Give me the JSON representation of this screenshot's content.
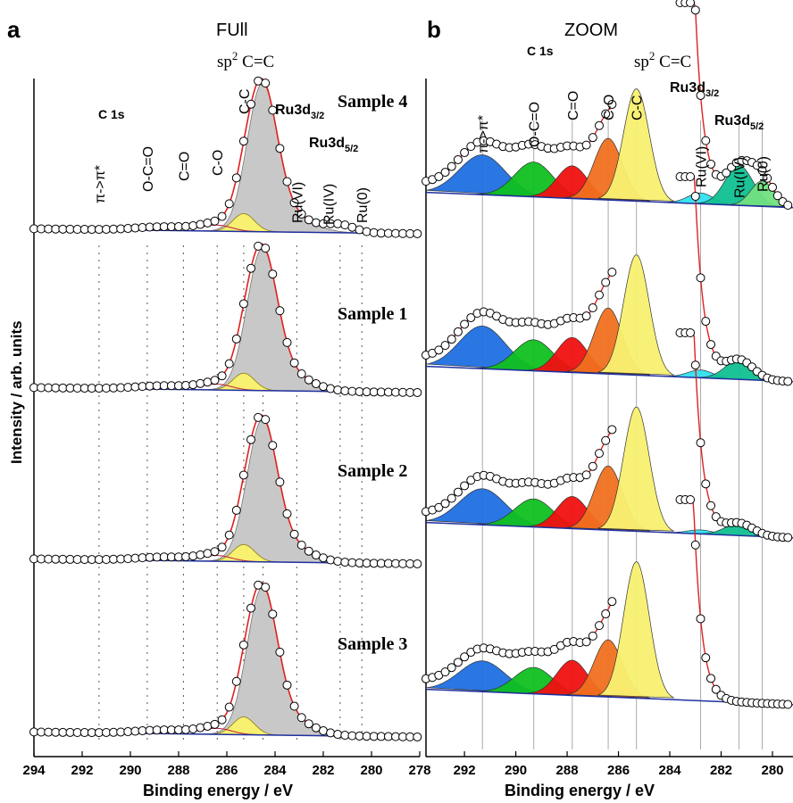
{
  "panels": {
    "a": {
      "letter": "a",
      "title": "FUll"
    },
    "b": {
      "letter": "b",
      "title": "ZOOM"
    }
  },
  "axes": {
    "ylabel": "Intensity / arb. units",
    "xlabel": "Binding energy / eV"
  },
  "annotations": {
    "c1s": "C 1s",
    "sp2": "sp",
    "sp2_sup": "2",
    "sp2_rest": " C=C",
    "pi": "π->π*",
    "ococ": "O-C=O",
    "co_double": "C=O",
    "co_single": "C-O",
    "cc": "C-C",
    "ru_vi": "Ru(VI)",
    "ru_iv": "Ru(IV)",
    "ru_0": "Ru(0)",
    "ru32_main": "Ru3d",
    "ru32_sub": "3/2",
    "ru52_main": "Ru3d",
    "ru52_sub": "5/2"
  },
  "samples": [
    "Sample 4",
    "Sample 1",
    "Sample 2",
    "Sample 3"
  ],
  "colors": {
    "pi": "#1f6fe0",
    "ococ": "#10c020",
    "co_double": "#f01010",
    "co_single": "#f07020",
    "cc": "#f8f070",
    "ru_main": "#c8c8c8",
    "ru_vi": "#30e0f0",
    "ru_iv": "#10c090",
    "ru_0": "#70e080",
    "envelope": "#e02020",
    "baseline": "#2030a0"
  },
  "chart_data": [
    {
      "type": "line",
      "panel": "a",
      "title": "FUll",
      "xlabel": "Binding energy / eV",
      "ylabel": "Intensity / arb. units",
      "x_ticks": [
        294,
        292,
        290,
        288,
        286,
        284,
        282,
        280,
        278
      ],
      "xlim": [
        294,
        278
      ],
      "x_reversed": true,
      "reference_lines_eV": [
        291.3,
        289.3,
        287.8,
        286.4,
        285.3,
        284.5,
        283.1,
        281.3,
        280.4
      ],
      "series": [
        {
          "name": "Sample 4",
          "peak_eV": 284.6,
          "peak_height": 1.0,
          "components": [
            "C 1s",
            "Ru3d3/2",
            "Ru3d5/2"
          ]
        },
        {
          "name": "Sample 1",
          "peak_eV": 284.6,
          "peak_height": 1.0,
          "components": [
            "C 1s",
            "Ru3d3/2",
            "Ru3d5/2"
          ]
        },
        {
          "name": "Sample 2",
          "peak_eV": 284.6,
          "peak_height": 1.0,
          "components": [
            "C 1s",
            "Ru3d3/2",
            "Ru3d5/2"
          ]
        },
        {
          "name": "Sample 3",
          "peak_eV": 284.6,
          "peak_height": 1.0,
          "components": [
            "C 1s",
            "Ru3d3/2",
            "Ru3d5/2"
          ]
        }
      ]
    },
    {
      "type": "line",
      "panel": "b",
      "title": "ZOOM",
      "xlabel": "Binding energy / eV",
      "x_ticks": [
        292,
        290,
        288,
        286,
        284,
        282,
        280
      ],
      "xlim": [
        293.5,
        279.2
      ],
      "x_reversed": true,
      "reference_lines_eV": [
        291.3,
        289.3,
        287.8,
        286.4,
        285.3,
        282.8,
        281.3,
        280.4
      ],
      "components": [
        {
          "name": "π->π*",
          "center_eV": 291.3
        },
        {
          "name": "O-C=O",
          "center_eV": 289.3
        },
        {
          "name": "C=O",
          "center_eV": 287.8
        },
        {
          "name": "C-O",
          "center_eV": 286.4
        },
        {
          "name": "C-C",
          "center_eV": 285.3
        },
        {
          "name": "Ru(VI)",
          "center_eV": 282.8
        },
        {
          "name": "Ru(IV)",
          "center_eV": 281.3
        },
        {
          "name": "Ru(0)",
          "center_eV": 280.4
        }
      ],
      "series": [
        {
          "name": "Sample 4",
          "component_heights": [
            0.55,
            0.48,
            0.45,
            0.85,
            1.0,
            0.15,
            0.55,
            0.35
          ]
        },
        {
          "name": "Sample 1",
          "component_heights": [
            0.55,
            0.4,
            0.45,
            0.85,
            1.0,
            0.1,
            0.25,
            0.0
          ]
        },
        {
          "name": "Sample 2",
          "component_heights": [
            0.45,
            0.35,
            0.4,
            0.8,
            1.0,
            0.05,
            0.15,
            0.0
          ]
        },
        {
          "name": "Sample 3",
          "component_heights": [
            0.35,
            0.3,
            0.4,
            0.65,
            1.0,
            0.0,
            0.0,
            0.0
          ]
        }
      ]
    }
  ]
}
